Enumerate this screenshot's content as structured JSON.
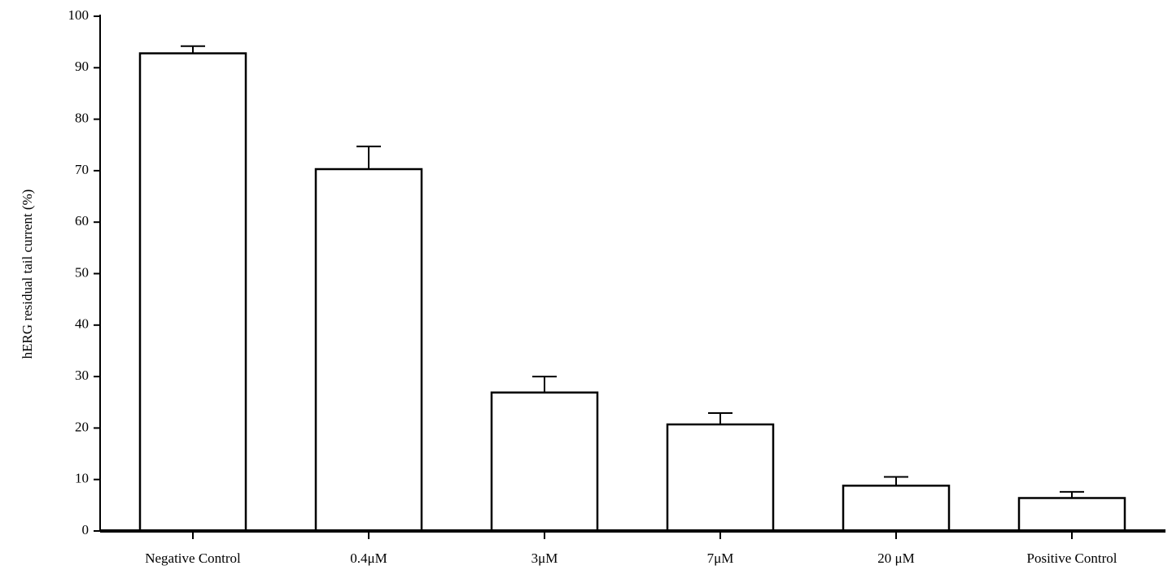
{
  "chart_data": {
    "type": "bar",
    "y_label": "hERG residual tail current (%)",
    "categories": [
      "Negative Control",
      "0.4μM",
      "3μM",
      "7μM",
      "20 μM",
      "Positive Control"
    ],
    "values": [
      92.8,
      70.3,
      26.9,
      20.7,
      8.8,
      6.4
    ],
    "errors": [
      1.4,
      4.4,
      3.1,
      2.2,
      1.7,
      1.2
    ],
    "color": "#ffffff",
    "ylim": [
      0,
      100
    ],
    "yticks": [
      0,
      10,
      20,
      30,
      40,
      50,
      60,
      70,
      80,
      90,
      100
    ],
    "grid": false
  }
}
